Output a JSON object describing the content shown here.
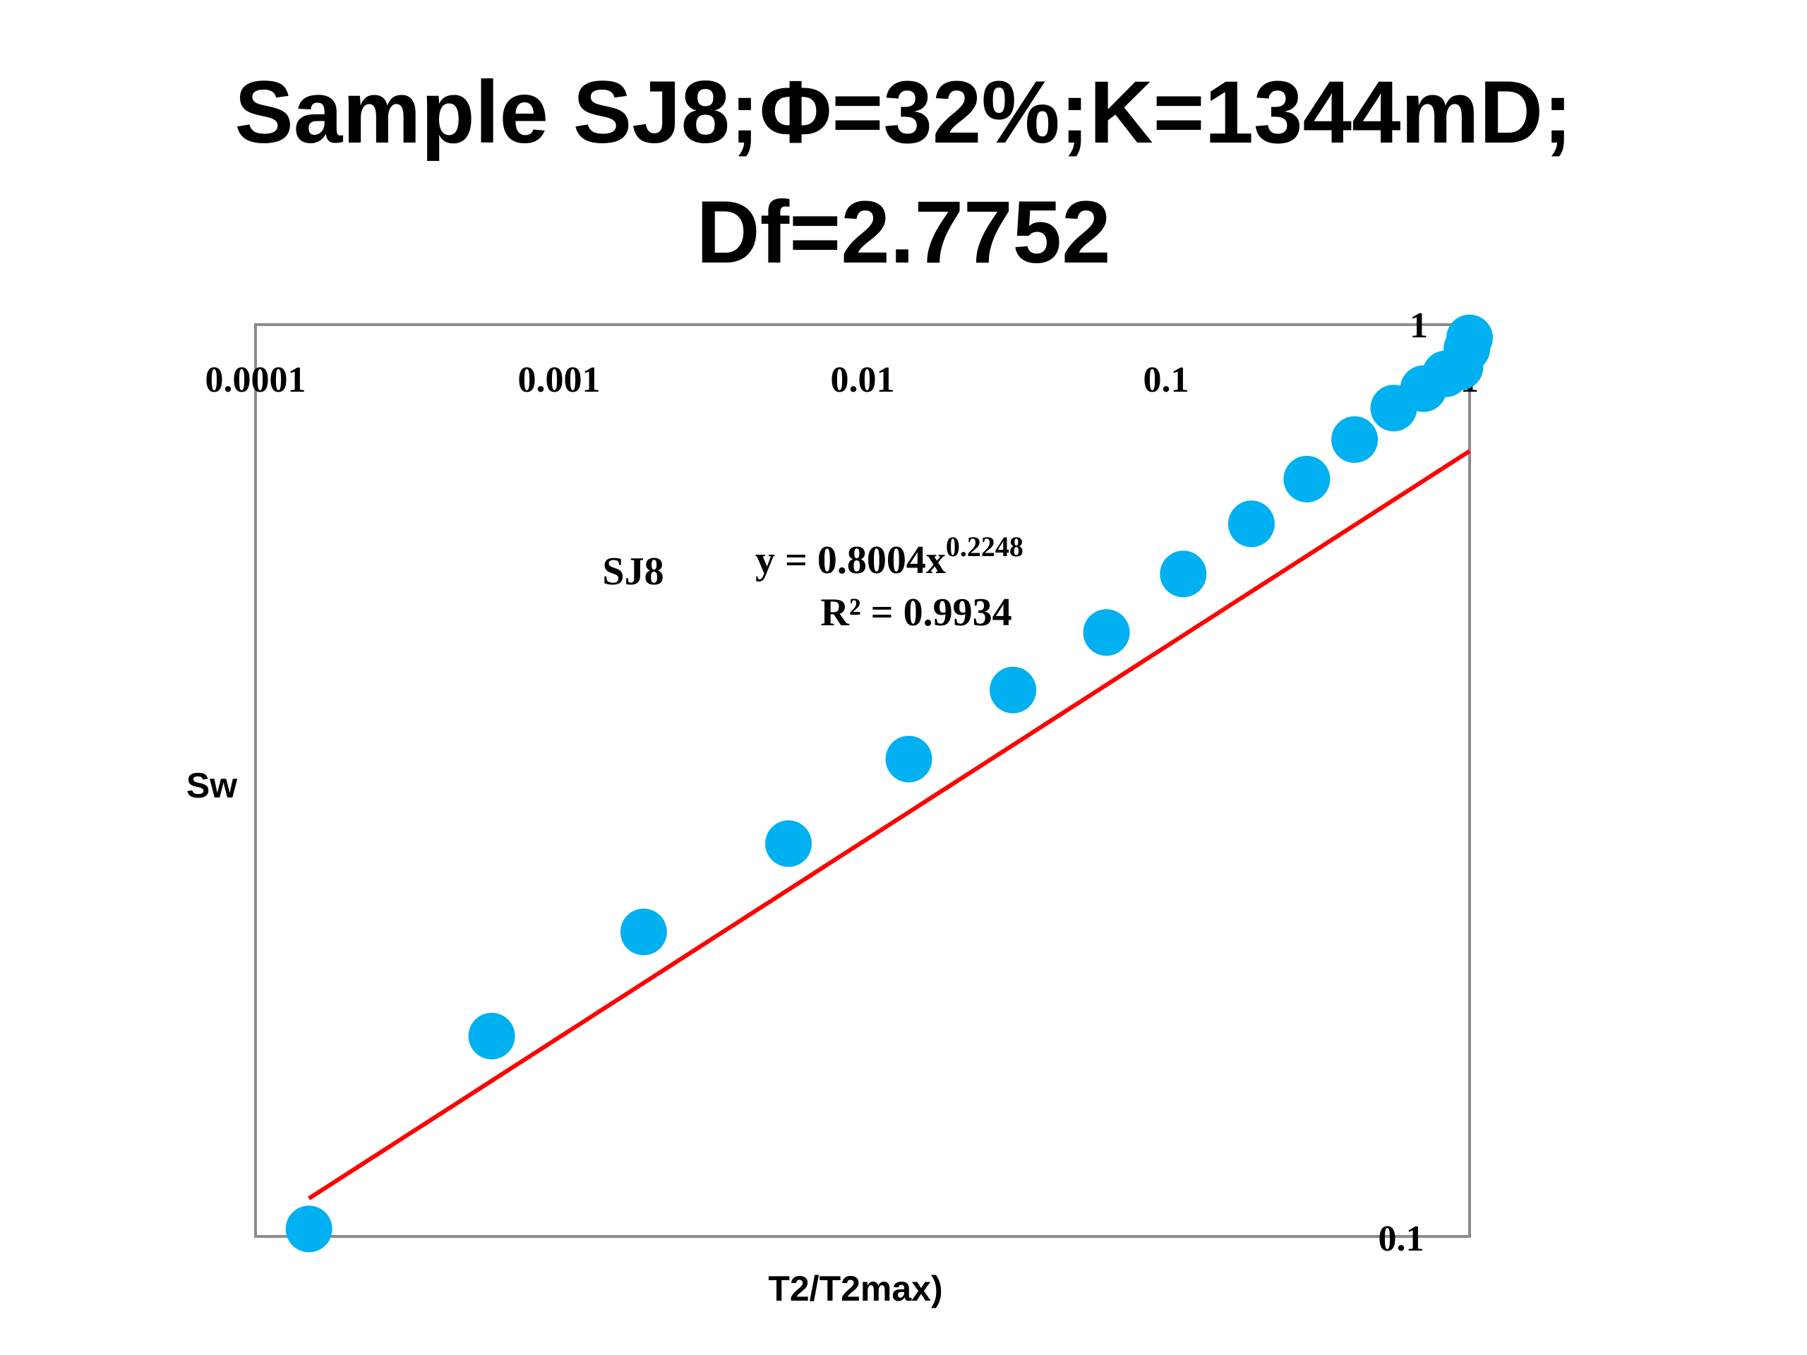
{
  "slide": {
    "title_line1": "Sample SJ8;Φ=32%;K=1344mD;",
    "title_line2": "Df=2.7752"
  },
  "chart_data": {
    "type": "scatter",
    "x_scale": "log",
    "y_scale": "log",
    "xlabel": "T2/T2max)",
    "ylabel": "Sw",
    "xlim": [
      0.0001,
      1
    ],
    "ylim": [
      0.1,
      1
    ],
    "x_tick_labels": [
      "0.0001",
      "0.001",
      "0.01",
      "0.1",
      "1"
    ],
    "y_tick_labels": [
      "1",
      "0.1"
    ],
    "series": [
      {
        "name": "SJ8",
        "marker_color": "#00B0F0",
        "points": [
          {
            "x": 0.00015,
            "y": 0.102
          },
          {
            "x": 0.0006,
            "y": 0.17
          },
          {
            "x": 0.0019,
            "y": 0.224
          },
          {
            "x": 0.0057,
            "y": 0.283
          },
          {
            "x": 0.0142,
            "y": 0.354
          },
          {
            "x": 0.0313,
            "y": 0.425
          },
          {
            "x": 0.0636,
            "y": 0.495
          },
          {
            "x": 0.1139,
            "y": 0.578
          },
          {
            "x": 0.1911,
            "y": 0.66
          },
          {
            "x": 0.2909,
            "y": 0.743
          },
          {
            "x": 0.4179,
            "y": 0.825
          },
          {
            "x": 0.5624,
            "y": 0.897
          },
          {
            "x": 0.7045,
            "y": 0.944
          },
          {
            "x": 0.8336,
            "y": 0.982
          },
          {
            "x": 0.9299,
            "y": 1.0
          },
          {
            "x": 0.98,
            "y": 1.05
          },
          {
            "x": 1.0,
            "y": 1.08
          }
        ]
      }
    ],
    "trendline": {
      "type": "power",
      "color": "#FF0000",
      "coefficient": 0.8004,
      "exponent": 0.2248,
      "x_range": [
        0.00015,
        1
      ]
    },
    "annotations": {
      "series_label": "SJ8",
      "equation_base": "y = 0.8004x",
      "equation_exponent": "0.2248",
      "r_squared": "R² = 0.9934"
    },
    "grid": false
  }
}
